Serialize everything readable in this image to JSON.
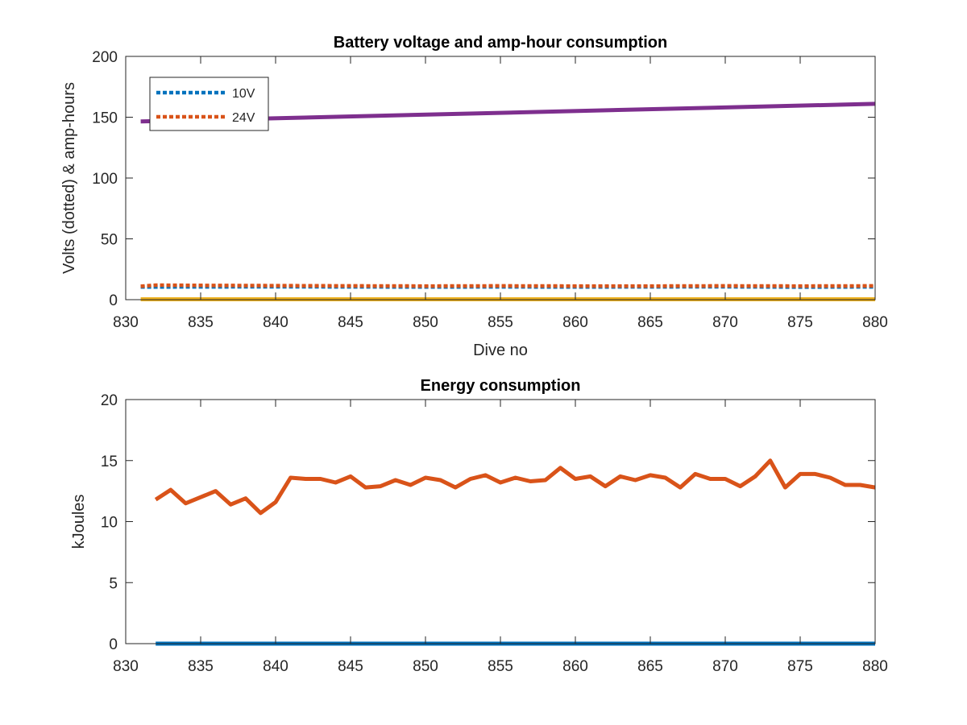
{
  "chart_data": [
    {
      "type": "line",
      "title": "Battery voltage and amp-hour consumption",
      "xlabel": "Dive no",
      "ylabel": "Volts (dotted) & amp-hours",
      "xlim": [
        830,
        880
      ],
      "ylim": [
        0,
        200
      ],
      "xticks": [
        830,
        835,
        840,
        845,
        850,
        855,
        860,
        865,
        870,
        875,
        880
      ],
      "yticks": [
        0,
        50,
        100,
        150,
        200
      ],
      "legend": {
        "position": "top-left",
        "entries": [
          "10V",
          "24V"
        ]
      },
      "grid": false,
      "series": [
        {
          "name": "10V",
          "style": "dotted",
          "color": "#0072BD",
          "x": [
            831,
            835,
            840,
            845,
            850,
            855,
            860,
            865,
            870,
            875,
            880
          ],
          "y": [
            10.4,
            10.5,
            10.6,
            10.5,
            10.4,
            10.5,
            10.4,
            10.5,
            10.6,
            10.3,
            10.5
          ]
        },
        {
          "name": "24V",
          "style": "dotted",
          "color": "#D95319",
          "x": [
            831,
            832,
            835,
            840,
            845,
            850,
            855,
            860,
            865,
            870,
            875,
            880
          ],
          "y": [
            11.0,
            11.9,
            11.7,
            11.5,
            11.3,
            11.2,
            11.3,
            11.2,
            11.2,
            11.3,
            11.2,
            11.3
          ]
        },
        {
          "style": "solid",
          "color": "#EDB120",
          "x": [
            831,
            880
          ],
          "y": [
            0.3,
            0.3
          ]
        },
        {
          "style": "solid",
          "color": "#7E2F8E",
          "x": [
            831,
            880
          ],
          "y": [
            146.5,
            161
          ]
        }
      ]
    },
    {
      "type": "line",
      "title": "Energy consumption",
      "xlabel": "",
      "ylabel": "kJoules",
      "xlim": [
        830,
        880
      ],
      "ylim": [
        0,
        20
      ],
      "xticks": [
        830,
        835,
        840,
        845,
        850,
        855,
        860,
        865,
        870,
        875,
        880
      ],
      "yticks": [
        0,
        5,
        10,
        15,
        20
      ],
      "grid": false,
      "series": [
        {
          "style": "solid",
          "color": "#0072BD",
          "x": [
            832,
            880
          ],
          "y": [
            0,
            0
          ]
        },
        {
          "style": "solid",
          "color": "#D95319",
          "x": [
            832,
            833,
            834,
            835,
            836,
            837,
            838,
            839,
            840,
            841,
            842,
            843,
            844,
            845,
            846,
            847,
            848,
            849,
            850,
            851,
            852,
            853,
            854,
            855,
            856,
            857,
            858,
            859,
            860,
            861,
            862,
            863,
            864,
            865,
            866,
            867,
            868,
            869,
            870,
            871,
            872,
            873,
            874,
            875,
            876,
            877,
            878,
            879,
            880
          ],
          "y": [
            11.8,
            12.6,
            11.5,
            12.0,
            12.5,
            11.4,
            11.9,
            10.7,
            11.6,
            13.6,
            13.5,
            13.5,
            13.2,
            13.7,
            12.8,
            12.9,
            13.4,
            13.0,
            13.6,
            13.4,
            12.8,
            13.5,
            13.8,
            13.2,
            13.6,
            13.3,
            13.4,
            14.4,
            13.5,
            13.7,
            12.9,
            13.7,
            13.4,
            13.8,
            13.6,
            12.8,
            13.9,
            13.5,
            13.5,
            12.9,
            13.7,
            15.0,
            12.8,
            13.9,
            13.9,
            13.6,
            13.0,
            13.0,
            12.8
          ]
        }
      ]
    }
  ]
}
